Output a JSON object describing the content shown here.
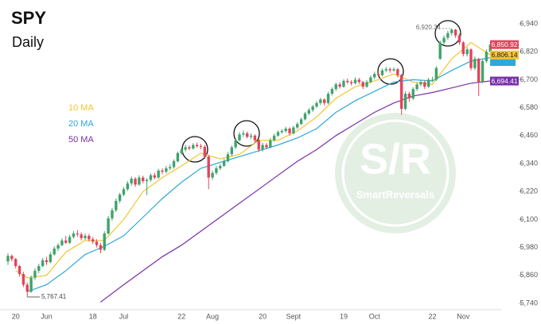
{
  "chart_data": {
    "type": "candlestick",
    "title": "SPY",
    "subtitle": "Daily",
    "watermark": {
      "title": "S/R",
      "subtitle": "SmartReversals"
    },
    "categories": [
      null,
      null,
      "20",
      null,
      null,
      null,
      null,
      null,
      null,
      null,
      "Jun",
      null,
      null,
      null,
      null,
      null,
      null,
      null,
      null,
      null,
      null,
      null,
      "18",
      null,
      null,
      null,
      null,
      null,
      null,
      null,
      "Jul",
      null,
      null,
      null,
      null,
      null,
      null,
      null,
      null,
      null,
      null,
      null,
      null,
      null,
      null,
      "22",
      null,
      null,
      null,
      null,
      null,
      null,
      null,
      "Aug",
      null,
      null,
      null,
      null,
      null,
      null,
      null,
      null,
      null,
      null,
      null,
      null,
      "20",
      null,
      null,
      null,
      null,
      null,
      null,
      null,
      "Sept",
      null,
      null,
      null,
      null,
      null,
      null,
      null,
      null,
      null,
      null,
      null,
      null,
      "19",
      null,
      null,
      null,
      null,
      null,
      null,
      null,
      "Oct",
      null,
      null,
      null,
      null,
      null,
      null,
      null,
      null,
      null,
      null,
      null,
      null,
      null,
      null,
      "22",
      null,
      null,
      null,
      null,
      null,
      null,
      null,
      "Nov",
      null,
      null,
      null,
      null,
      null,
      null,
      null
    ],
    "ohlc": [
      [
        5920,
        5955,
        5905,
        5944
      ],
      [
        5944,
        5950,
        5920,
        5930
      ],
      [
        5930,
        5935,
        5890,
        5900
      ],
      [
        5900,
        5905,
        5855,
        5866
      ],
      [
        5866,
        5875,
        5810,
        5820
      ],
      [
        5820,
        5830,
        5767.41,
        5790
      ],
      [
        5790,
        5860,
        5785,
        5850
      ],
      [
        5850,
        5890,
        5840,
        5880
      ],
      [
        5880,
        5910,
        5870,
        5900
      ],
      [
        5900,
        5935,
        5895,
        5925
      ],
      [
        5925,
        5940,
        5905,
        5917
      ],
      [
        5917,
        5960,
        5912,
        5950
      ],
      [
        5950,
        5985,
        5945,
        5975
      ],
      [
        5975,
        5998,
        5965,
        5990
      ],
      [
        5990,
        6020,
        5985,
        6010
      ],
      [
        6010,
        6030,
        5995,
        6000
      ],
      [
        6000,
        6035,
        5995,
        6025
      ],
      [
        6025,
        6050,
        6018,
        6040
      ],
      [
        6040,
        6055,
        6025,
        6036
      ],
      [
        6036,
        6045,
        6010,
        6020
      ],
      [
        6020,
        6040,
        6012,
        6030
      ],
      [
        6030,
        6038,
        6005,
        6015
      ],
      [
        6015,
        6025,
        5995,
        6005
      ],
      [
        6005,
        6015,
        5980,
        5990
      ],
      [
        5990,
        6000,
        5955,
        5970
      ],
      [
        5970,
        6050,
        5965,
        6040
      ],
      [
        6040,
        6115,
        6035,
        6105
      ],
      [
        6105,
        6150,
        6095,
        6140
      ],
      [
        6140,
        6190,
        6132,
        6180
      ],
      [
        6180,
        6215,
        6170,
        6207
      ],
      [
        6207,
        6240,
        6200,
        6230
      ],
      [
        6230,
        6265,
        6222,
        6255
      ],
      [
        6255,
        6285,
        6245,
        6275
      ],
      [
        6275,
        6282,
        6240,
        6250
      ],
      [
        6250,
        6290,
        6245,
        6280
      ],
      [
        6280,
        6288,
        6255,
        6265
      ],
      [
        6265,
        6278,
        6205,
        6270
      ],
      [
        6270,
        6298,
        6262,
        6290
      ],
      [
        6290,
        6300,
        6272,
        6280
      ],
      [
        6280,
        6318,
        6275,
        6310
      ],
      [
        6310,
        6320,
        6295,
        6305
      ],
      [
        6305,
        6330,
        6298,
        6320
      ],
      [
        6320,
        6338,
        6312,
        6325
      ],
      [
        6325,
        6358,
        6318,
        6350
      ],
      [
        6350,
        6392,
        6345,
        6385
      ],
      [
        6385,
        6408,
        6378,
        6400
      ],
      [
        6400,
        6420,
        6392,
        6410
      ],
      [
        6410,
        6418,
        6398,
        6405
      ],
      [
        6405,
        6428,
        6400,
        6420
      ],
      [
        6420,
        6430,
        6408,
        6415
      ],
      [
        6415,
        6425,
        6402,
        6412
      ],
      [
        6412,
        6420,
        6360,
        6370
      ],
      [
        6370,
        6378,
        6230,
        6280
      ],
      [
        6280,
        6310,
        6270,
        6300
      ],
      [
        6300,
        6330,
        6292,
        6320
      ],
      [
        6320,
        6338,
        6312,
        6330
      ],
      [
        6330,
        6360,
        6325,
        6350
      ],
      [
        6350,
        6390,
        6345,
        6380
      ],
      [
        6380,
        6418,
        6372,
        6410
      ],
      [
        6410,
        6448,
        6402,
        6440
      ],
      [
        6440,
        6475,
        6435,
        6465
      ],
      [
        6465,
        6482,
        6455,
        6470
      ],
      [
        6470,
        6478,
        6448,
        6455
      ],
      [
        6455,
        6470,
        6445,
        6460
      ],
      [
        6460,
        6466,
        6432,
        6440
      ],
      [
        6440,
        6448,
        6390,
        6400
      ],
      [
        6400,
        6430,
        6392,
        6420
      ],
      [
        6420,
        6428,
        6402,
        6410
      ],
      [
        6410,
        6450,
        6405,
        6440
      ],
      [
        6440,
        6468,
        6435,
        6460
      ],
      [
        6460,
        6482,
        6455,
        6475
      ],
      [
        6475,
        6488,
        6468,
        6480
      ],
      [
        6480,
        6498,
        6472,
        6490
      ],
      [
        6490,
        6496,
        6460,
        6470
      ],
      [
        6470,
        6502,
        6465,
        6495
      ],
      [
        6495,
        6518,
        6488,
        6510
      ],
      [
        6510,
        6538,
        6505,
        6530
      ],
      [
        6530,
        6562,
        6525,
        6555
      ],
      [
        6555,
        6578,
        6548,
        6570
      ],
      [
        6570,
        6592,
        6562,
        6585
      ],
      [
        6585,
        6608,
        6578,
        6600
      ],
      [
        6600,
        6622,
        6592,
        6615
      ],
      [
        6615,
        6620,
        6590,
        6600
      ],
      [
        6600,
        6648,
        6595,
        6640
      ],
      [
        6640,
        6668,
        6632,
        6660
      ],
      [
        6660,
        6688,
        6652,
        6680
      ],
      [
        6680,
        6690,
        6662,
        6670
      ],
      [
        6670,
        6702,
        6665,
        6695
      ],
      [
        6695,
        6705,
        6682,
        6690
      ],
      [
        6690,
        6698,
        6675,
        6685
      ],
      [
        6685,
        6710,
        6680,
        6700
      ],
      [
        6700,
        6708,
        6682,
        6690
      ],
      [
        6690,
        6695,
        6660,
        6670
      ],
      [
        6670,
        6698,
        6665,
        6690
      ],
      [
        6690,
        6718,
        6685,
        6710
      ],
      [
        6710,
        6735,
        6702,
        6725
      ],
      [
        6725,
        6732,
        6712,
        6720
      ],
      [
        6720,
        6748,
        6715,
        6740
      ],
      [
        6740,
        6755,
        6732,
        6745
      ],
      [
        6745,
        6752,
        6730,
        6740
      ],
      [
        6740,
        6753,
        6735,
        6745
      ],
      [
        6745,
        6750,
        6710,
        6720
      ],
      [
        6720,
        6725,
        6550,
        6575
      ],
      [
        6575,
        6650,
        6568,
        6640
      ],
      [
        6640,
        6648,
        6605,
        6620
      ],
      [
        6620,
        6668,
        6612,
        6660
      ],
      [
        6660,
        6688,
        6652,
        6680
      ],
      [
        6680,
        6698,
        6672,
        6690
      ],
      [
        6690,
        6695,
        6660,
        6670
      ],
      [
        6670,
        6708,
        6665,
        6700
      ],
      [
        6700,
        6712,
        6690,
        6700
      ],
      [
        6700,
        6758,
        6695,
        6750
      ],
      [
        6790,
        6868,
        6785,
        6860
      ],
      [
        6860,
        6890,
        6852,
        6880
      ],
      [
        6880,
        6910,
        6872,
        6900
      ],
      [
        6900,
        6920.34,
        6890,
        6915
      ],
      [
        6915,
        6918,
        6880,
        6890
      ],
      [
        6890,
        6898,
        6850,
        6860
      ],
      [
        6860,
        6866,
        6800,
        6810
      ],
      [
        6810,
        6840,
        6800,
        6830
      ],
      [
        6830,
        6835,
        6740,
        6750
      ],
      [
        6750,
        6800,
        6742,
        6790
      ],
      [
        6790,
        6795,
        6630,
        6690
      ],
      [
        6690,
        6790,
        6685,
        6780
      ],
      [
        6780,
        6830,
        6772,
        6820
      ],
      [
        6820,
        6860,
        6812,
        6850.92
      ]
    ],
    "up_color": "#3fa36b",
    "down_color": "#e2445c",
    "series": [
      {
        "name": "10 MA",
        "color": "#f4c430",
        "x": [
          2,
          5,
          10,
          15,
          20,
          25,
          30,
          35,
          40,
          45,
          50,
          55,
          60,
          65,
          70,
          75,
          80,
          85,
          90,
          95,
          100,
          105,
          110,
          115,
          120,
          125
        ],
        "values": [
          5880,
          5850,
          5860,
          5960,
          6010,
          6010,
          6100,
          6220,
          6280,
          6330,
          6385,
          6360,
          6380,
          6440,
          6440,
          6480,
          6540,
          6620,
          6670,
          6695,
          6725,
          6690,
          6680,
          6790,
          6860,
          6806.14
        ]
      },
      {
        "name": "20 MA",
        "color": "#2ea8d8",
        "x": [
          5,
          10,
          15,
          20,
          25,
          30,
          35,
          40,
          45,
          50,
          55,
          60,
          65,
          70,
          75,
          80,
          85,
          90,
          95,
          100,
          105,
          110,
          115,
          120,
          125
        ],
        "values": [
          5790,
          5820,
          5880,
          5950,
          5985,
          6030,
          6110,
          6190,
          6260,
          6320,
          6345,
          6370,
          6395,
          6420,
          6450,
          6490,
          6560,
          6610,
          6650,
          6690,
          6700,
          6695,
          6740,
          6780,
          6795
        ]
      },
      {
        "name": "50 MA",
        "color": "#7a2fa8",
        "x": [
          24,
          30,
          35,
          40,
          45,
          50,
          55,
          60,
          65,
          70,
          75,
          80,
          85,
          90,
          95,
          100,
          105,
          110,
          115,
          120,
          125
        ],
        "values": [
          5745,
          5820,
          5880,
          5940,
          5990,
          6050,
          6110,
          6170,
          6230,
          6290,
          6350,
          6400,
          6460,
          6510,
          6560,
          6600,
          6630,
          6645,
          6665,
          6685,
          6694.41
        ]
      }
    ],
    "price_labels": [
      {
        "value": 6850.92,
        "label": "6,850.92",
        "color": "#e2445c"
      },
      {
        "value": 6806.14,
        "label": "6,806.14",
        "color": "#f4c430"
      },
      {
        "value": 6694.41,
        "label": "6,694.41",
        "color": "#7a2fa8"
      }
    ],
    "annotations": [
      {
        "index": 115,
        "value": 6920.34,
        "label": "6,920.34"
      },
      {
        "index": 5,
        "value": 5767.41,
        "label": "5,767.41"
      }
    ],
    "ylim": [
      5740,
      6940
    ],
    "yticks": [
      {
        "value": 5740,
        "label": "5,740"
      },
      {
        "value": 5860,
        "label": "5,860"
      },
      {
        "value": 5980,
        "label": "5,980"
      },
      {
        "value": 6100,
        "label": "6,100"
      },
      {
        "value": 6220,
        "label": "6,220"
      },
      {
        "value": 6340,
        "label": "6,340"
      },
      {
        "value": 6460,
        "label": "6,460"
      },
      {
        "value": 6580,
        "label": "6,580"
      },
      {
        "value": 6700,
        "label": "6,700"
      },
      {
        "value": 6820,
        "label": "6,820"
      },
      {
        "value": 6940,
        "label": "6,940"
      }
    ]
  }
}
